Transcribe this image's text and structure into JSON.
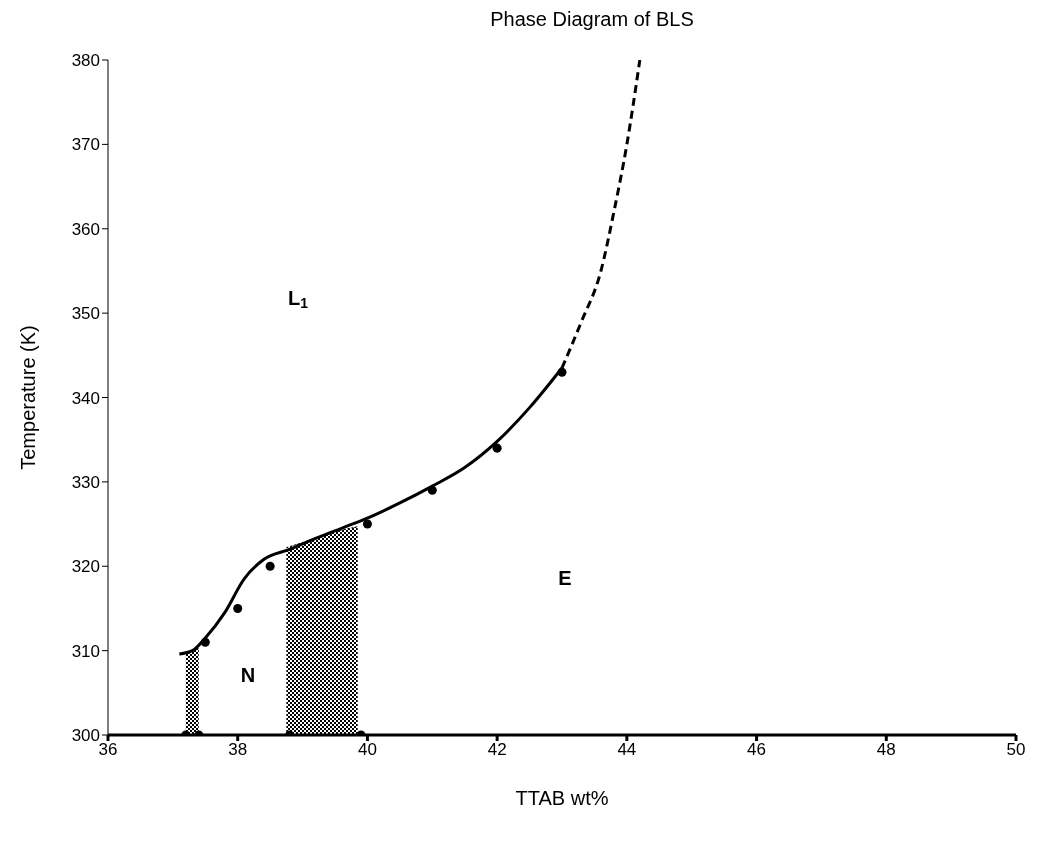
{
  "chart_data": {
    "type": "scatter",
    "title": "Phase Diagram of BLS",
    "xlabel": "TTAB wt%",
    "ylabel": "Temperature (K)",
    "xlim": [
      36,
      50
    ],
    "xticks": [
      36,
      38,
      40,
      42,
      44,
      46,
      48,
      50
    ],
    "ylim": [
      300,
      380
    ],
    "yticks": [
      300,
      310,
      320,
      330,
      340,
      350,
      360,
      370,
      380
    ],
    "grid": false,
    "legend": false,
    "series": [
      {
        "type": "area",
        "color": "#000000",
        "marker": "none",
        "x": [
          37.2,
          37.4
        ],
        "values": [
          309.8,
          310.3
        ]
      },
      {
        "type": "area",
        "color": "#000000",
        "marker": "none",
        "x": [
          38.75,
          39.2,
          39.6,
          39.85
        ],
        "values": [
          322.2,
          323.3,
          324.3,
          324.7
        ]
      },
      {
        "type": "line",
        "color": "#000000",
        "line_style": "solid",
        "marker": "none",
        "x": [
          37.1,
          37.3,
          37.5,
          37.8,
          38.1,
          38.4,
          38.8,
          39.2,
          39.6,
          40,
          40.5,
          41,
          41.5,
          42,
          42.5,
          43
        ],
        "values": [
          309.6,
          310,
          311.5,
          314.5,
          318.5,
          320.8,
          322,
          323.3,
          324.5,
          325.7,
          327.5,
          329.5,
          331.7,
          334.8,
          338.8,
          343.5
        ]
      },
      {
        "type": "line",
        "color": "#000000",
        "line_style": "dashed",
        "marker": "none",
        "x": [
          43,
          43.3,
          43.6,
          43.8,
          44,
          44.2
        ],
        "values": [
          343.5,
          349,
          355,
          362,
          370,
          380
        ]
      },
      {
        "color": "#000000",
        "marker": "circle",
        "x": [
          37.2,
          37.4,
          37.5,
          38,
          38.5,
          38.8,
          39.9,
          40,
          41,
          42,
          43
        ],
        "values": [
          300,
          300,
          311,
          315,
          320,
          300,
          300,
          325,
          329,
          334,
          343
        ]
      }
    ],
    "annotations": [
      "L$_{1}$",
      "N",
      "E"
    ]
  }
}
